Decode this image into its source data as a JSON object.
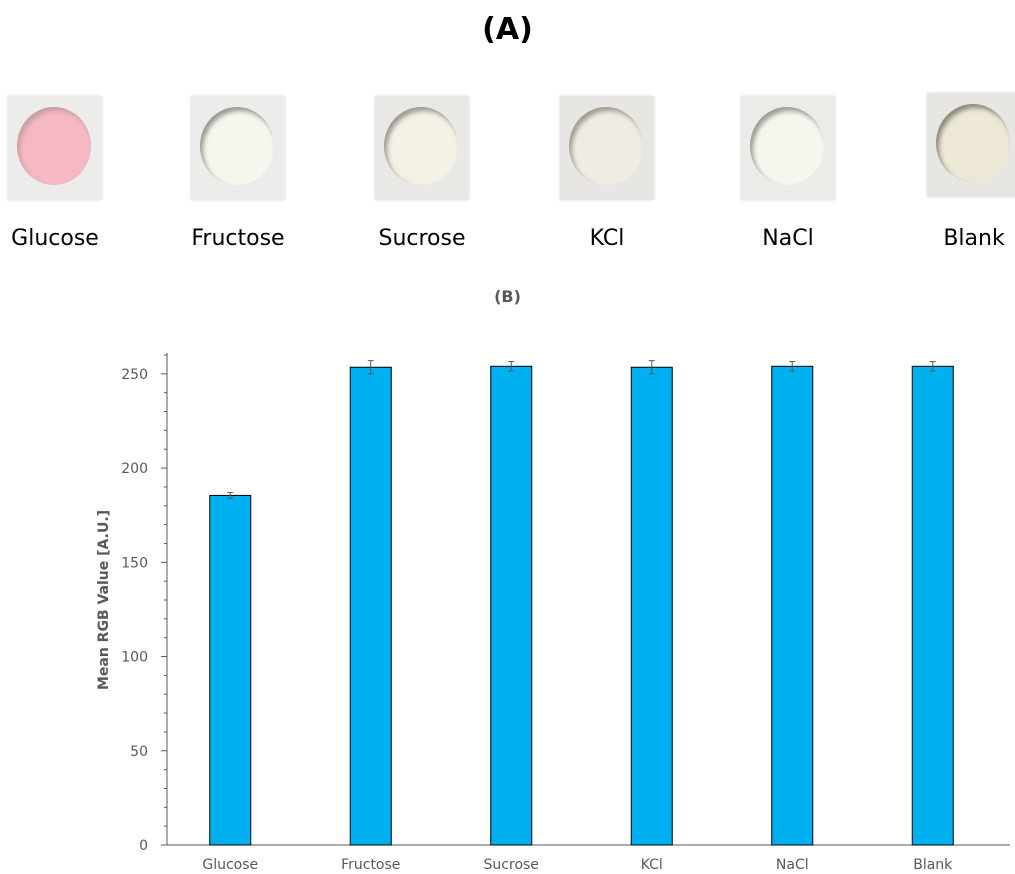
{
  "panel_a": {
    "title": "(A)",
    "samples": [
      {
        "label": "Glucose",
        "spot_color": "#f5b8c4",
        "rim_color": "#c9a0a6",
        "paper_color": "#ececea"
      },
      {
        "label": "Fructose",
        "spot_color": "#f7f6ee",
        "rim_color": "#9b9a92",
        "paper_color": "#ececea"
      },
      {
        "label": "Sucrose",
        "spot_color": "#f3f1e6",
        "rim_color": "#9e9c92",
        "paper_color": "#e9e8e4"
      },
      {
        "label": "KCl",
        "spot_color": "#f1ece3",
        "rim_color": "#a39d93",
        "paper_color": "#e8e6e2"
      },
      {
        "label": "NaCl",
        "spot_color": "#f6f5ee",
        "rim_color": "#9c9b94",
        "paper_color": "#ecebe8"
      },
      {
        "label": "Blank",
        "spot_color": "#ede7d6",
        "rim_color": "#8e8a7e",
        "paper_color": "#e7e6e2"
      }
    ]
  },
  "panel_b": {
    "title": "(B)"
  },
  "chart_data": {
    "type": "bar",
    "categories": [
      "Glucose",
      "Fructose",
      "Sucrose",
      "KCl",
      "NaCl",
      "Blank"
    ],
    "values": [
      185.5,
      253.5,
      254.0,
      253.5,
      254.0,
      254.0
    ],
    "errors": [
      1.5,
      3.5,
      2.5,
      3.5,
      2.5,
      2.5
    ],
    "title": "",
    "xlabel": "",
    "ylabel": "Mean RGB Value [A.U.]",
    "ylim": [
      0,
      260
    ],
    "yticks": [
      0,
      50,
      100,
      150,
      200,
      250
    ],
    "yminor_step": 10,
    "grid": false,
    "colors": {
      "bar": "#00b0f0",
      "bar_edge": "#000000",
      "axis": "#595959",
      "error_bar": "#595959"
    }
  }
}
